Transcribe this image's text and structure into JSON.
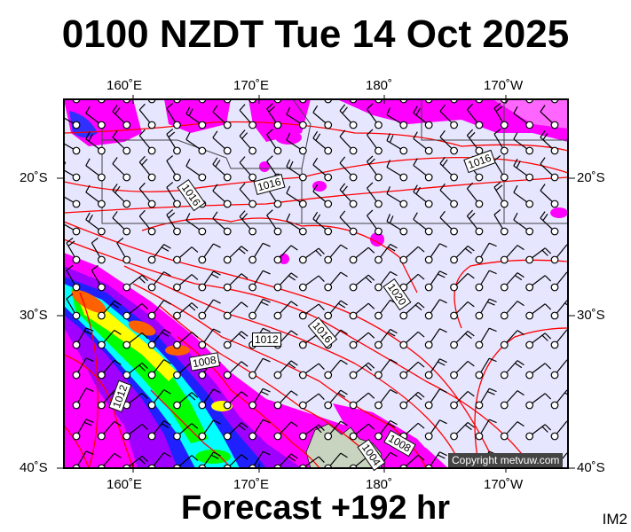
{
  "title": "0100 NZDT Tue 14 Oct 2025",
  "footer": "Forecast +192 hr",
  "model_tag": "IM2",
  "copyright": "Copyright metvuw.com",
  "axes": {
    "top_lon_labels": [
      "160˚E",
      "170˚E",
      "180˚",
      "170˚W"
    ],
    "bottom_lon_labels": [
      "160˚E",
      "170˚E",
      "180˚",
      "170˚W"
    ],
    "left_lat_labels": [
      "20˚S",
      "30˚S",
      "40˚S"
    ],
    "right_lat_labels": [
      "20˚S",
      "30˚S",
      "40˚S"
    ]
  },
  "isobar_labels": [
    "1016",
    "1016",
    "1016",
    "1020",
    "1016",
    "1012",
    "1008",
    "1012",
    "1008",
    "1004"
  ],
  "colors": {
    "ocean": "#e6e6ff",
    "isobar": "#ff0000",
    "land": "#c8d4c0",
    "precip_scale": [
      "#ff00ff",
      "#a000ff",
      "#0000ff",
      "#00ffff",
      "#00ff00",
      "#ffff00",
      "#ff6000"
    ]
  }
}
